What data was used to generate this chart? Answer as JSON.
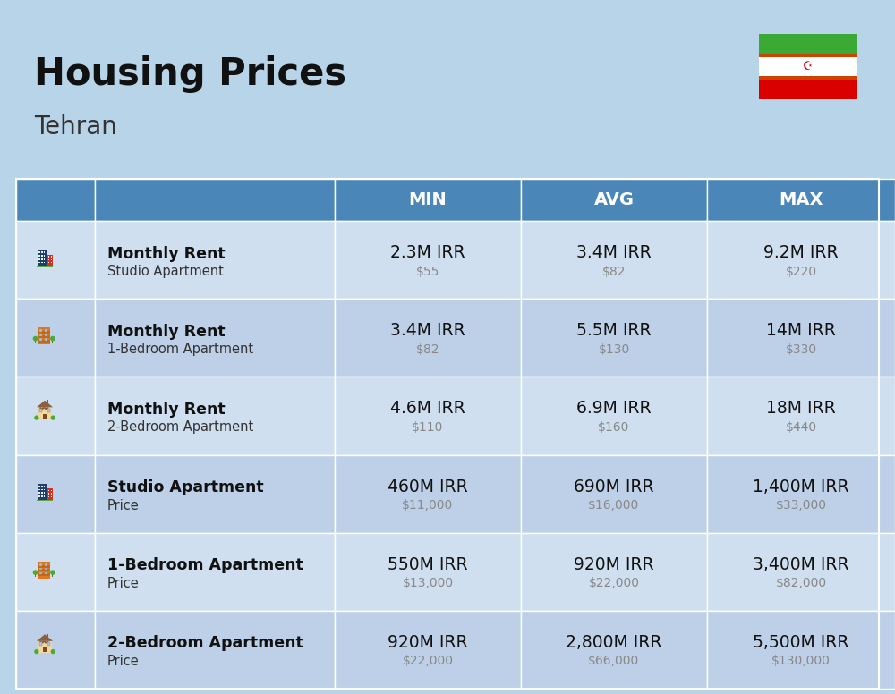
{
  "title": "Housing Prices",
  "subtitle": "Tehran",
  "background_color": "#b8d4e8",
  "header_col12_bg": "#4a87b8",
  "header_col345_bg": "#4a87b8",
  "row_bg_color_1": "#cfdff0",
  "row_bg_color_2": "#bdd0e8",
  "columns": [
    "MIN",
    "AVG",
    "MAX"
  ],
  "flag_green": "#3aaa35",
  "flag_white": "#ffffff",
  "flag_red": "#da0000",
  "rows": [
    {
      "bold_label": "Monthly Rent",
      "sub_label": "Studio Apartment",
      "min_irr": "2.3M IRR",
      "min_usd": "$55",
      "avg_irr": "3.4M IRR",
      "avg_usd": "$82",
      "max_irr": "9.2M IRR",
      "max_usd": "$220",
      "icon_type": "studio_blue"
    },
    {
      "bold_label": "Monthly Rent",
      "sub_label": "1-Bedroom Apartment",
      "min_irr": "3.4M IRR",
      "min_usd": "$82",
      "avg_irr": "5.5M IRR",
      "avg_usd": "$130",
      "max_irr": "14M IRR",
      "max_usd": "$330",
      "icon_type": "bed1_orange"
    },
    {
      "bold_label": "Monthly Rent",
      "sub_label": "2-Bedroom Apartment",
      "min_irr": "4.6M IRR",
      "min_usd": "$110",
      "avg_irr": "6.9M IRR",
      "avg_usd": "$160",
      "max_irr": "18M IRR",
      "max_usd": "$440",
      "icon_type": "bed2_house"
    },
    {
      "bold_label": "Studio Apartment",
      "sub_label": "Price",
      "min_irr": "460M IRR",
      "min_usd": "$11,000",
      "avg_irr": "690M IRR",
      "avg_usd": "$16,000",
      "max_irr": "1,400M IRR",
      "max_usd": "$33,000",
      "icon_type": "studio_blue"
    },
    {
      "bold_label": "1-Bedroom Apartment",
      "sub_label": "Price",
      "min_irr": "550M IRR",
      "min_usd": "$13,000",
      "avg_irr": "920M IRR",
      "avg_usd": "$22,000",
      "max_irr": "3,400M IRR",
      "max_usd": "$82,000",
      "icon_type": "bed1_orange"
    },
    {
      "bold_label": "2-Bedroom Apartment",
      "sub_label": "Price",
      "min_irr": "920M IRR",
      "min_usd": "$22,000",
      "avg_irr": "2,800M IRR",
      "avg_usd": "$66,000",
      "max_irr": "5,500M IRR",
      "max_usd": "$130,000",
      "icon_type": "bed2_house"
    }
  ]
}
